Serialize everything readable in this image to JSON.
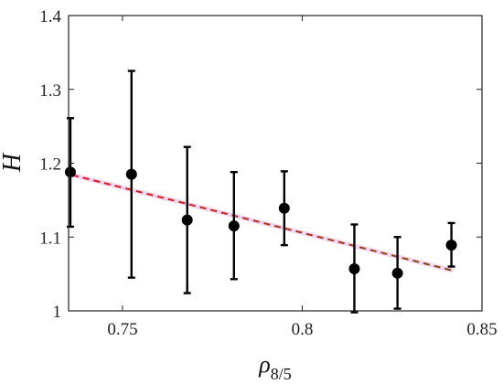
{
  "chart_data": {
    "type": "scatter",
    "xlabel": "ρ",
    "xlabel_subscript": "8/5",
    "ylabel": "H",
    "xlim": [
      0.735,
      0.85
    ],
    "ylim": [
      1.0,
      1.4
    ],
    "xticks": [
      0.75,
      0.8,
      0.85
    ],
    "xtick_labels": [
      "0.75",
      "0.8",
      "0.85"
    ],
    "yticks": [
      1.0,
      1.1,
      1.2,
      1.3,
      1.4
    ],
    "ytick_labels": [
      "1",
      "1.1",
      "1.2",
      "1.3",
      "1.4"
    ],
    "grid": false,
    "series": [
      {
        "kind": "points-with-error-bars",
        "color": "#000000",
        "points": [
          {
            "x": 0.7355,
            "y": 1.188,
            "err_low": 1.114,
            "err_high": 1.261
          },
          {
            "x": 0.7525,
            "y": 1.185,
            "err_low": 1.045,
            "err_high": 1.325
          },
          {
            "x": 0.768,
            "y": 1.123,
            "err_low": 1.024,
            "err_high": 1.222
          },
          {
            "x": 0.781,
            "y": 1.115,
            "err_low": 1.043,
            "err_high": 1.188
          },
          {
            "x": 0.795,
            "y": 1.139,
            "err_low": 1.089,
            "err_high": 1.189
          },
          {
            "x": 0.8145,
            "y": 1.057,
            "err_low": 0.998,
            "err_high": 1.117
          },
          {
            "x": 0.8265,
            "y": 1.051,
            "err_low": 1.003,
            "err_high": 1.1
          },
          {
            "x": 0.8415,
            "y": 1.089,
            "err_low": 1.06,
            "err_high": 1.119
          }
        ]
      },
      {
        "kind": "fit-line",
        "style": "dashed",
        "color_start": "#e8101a",
        "color_end": "#7a4a10",
        "glow_color": "#f3c6ee",
        "x": [
          0.736,
          0.8415
        ],
        "y": [
          1.184,
          1.055
        ]
      }
    ]
  }
}
